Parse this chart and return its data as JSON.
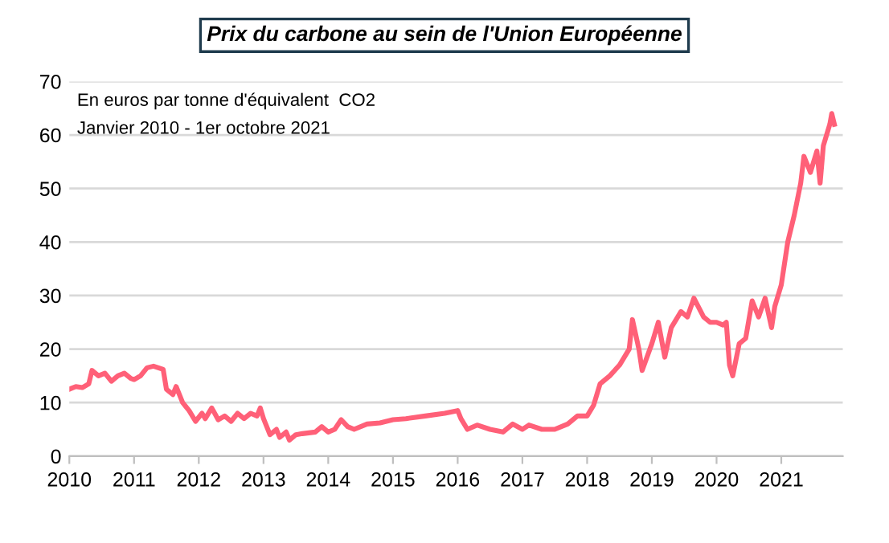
{
  "chart_data": {
    "type": "line",
    "title": "Prix du carbone au sein de l'Union Européenne",
    "annotations": [
      "En euros par tonne d'équivalent  CO2",
      "Janvier 2010 - 1er octobre 2021"
    ],
    "x": [
      2010.0,
      2010.1,
      2010.2,
      2010.3,
      2010.35,
      2010.45,
      2010.55,
      2010.65,
      2010.75,
      2010.85,
      2010.95,
      2011.0,
      2011.1,
      2011.2,
      2011.3,
      2011.45,
      2011.5,
      2011.6,
      2011.65,
      2011.75,
      2011.85,
      2011.95,
      2012.05,
      2012.1,
      2012.2,
      2012.3,
      2012.4,
      2012.5,
      2012.6,
      2012.7,
      2012.8,
      2012.9,
      2012.95,
      2013.0,
      2013.1,
      2013.2,
      2013.25,
      2013.35,
      2013.4,
      2013.5,
      2013.6,
      2013.8,
      2013.9,
      2014.0,
      2014.1,
      2014.2,
      2014.3,
      2014.4,
      2014.6,
      2014.8,
      2015.0,
      2015.2,
      2015.5,
      2015.8,
      2016.0,
      2016.05,
      2016.15,
      2016.3,
      2016.5,
      2016.7,
      2016.85,
      2017.0,
      2017.1,
      2017.3,
      2017.5,
      2017.7,
      2017.85,
      2018.0,
      2018.1,
      2018.2,
      2018.35,
      2018.5,
      2018.65,
      2018.7,
      2018.8,
      2018.85,
      2019.0,
      2019.1,
      2019.2,
      2019.3,
      2019.45,
      2019.55,
      2019.65,
      2019.8,
      2019.9,
      2020.0,
      2020.1,
      2020.15,
      2020.2,
      2020.25,
      2020.35,
      2020.45,
      2020.55,
      2020.65,
      2020.75,
      2020.85,
      2020.9,
      2021.0,
      2021.1,
      2021.2,
      2021.3,
      2021.35,
      2021.45,
      2021.55,
      2021.6,
      2021.65,
      2021.75,
      2021.78,
      2021.82
    ],
    "series": [
      {
        "color": "#ff6078",
        "values": [
          12.5,
          13,
          12.8,
          13.5,
          16,
          15,
          15.5,
          14,
          15,
          15.5,
          14.5,
          14.3,
          15,
          16.5,
          16.8,
          16.2,
          12.5,
          11.5,
          13,
          10,
          8.5,
          6.5,
          8,
          7,
          9,
          6.8,
          7.5,
          6.5,
          8,
          7,
          8,
          7.5,
          9,
          7,
          4,
          5,
          3.5,
          4.5,
          3,
          4,
          4.2,
          4.5,
          5.5,
          4.5,
          5,
          6.8,
          5.5,
          5,
          6,
          6.2,
          6.8,
          7,
          7.5,
          8,
          8.5,
          7,
          5,
          5.8,
          5,
          4.5,
          6,
          5,
          5.8,
          5,
          5,
          6,
          7.5,
          7.5,
          9.5,
          13.5,
          15,
          17,
          20,
          25.5,
          20,
          16,
          21,
          25,
          18.5,
          24,
          27,
          26,
          29.5,
          26,
          25,
          25,
          24.5,
          25,
          17,
          15,
          21,
          22,
          29,
          26,
          29.5,
          24,
          28,
          32,
          40,
          45,
          51,
          56,
          53,
          57,
          51,
          58,
          62,
          64,
          62
        ]
      }
    ],
    "xlim": [
      2010,
      2021.95
    ],
    "xticks": [
      2010,
      2011,
      2012,
      2013,
      2014,
      2015,
      2016,
      2017,
      2018,
      2019,
      2020,
      2021
    ],
    "ylim": [
      0,
      70
    ],
    "yticks": [
      0,
      10,
      20,
      30,
      40,
      50,
      60,
      70
    ],
    "grid": "y",
    "line_style": "solid"
  }
}
